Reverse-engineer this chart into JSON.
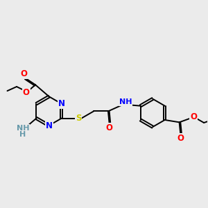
{
  "background_color": "#ebebeb",
  "atom_colors": {
    "N": "#0000FF",
    "O": "#FF0000",
    "S": "#CCCC00",
    "C": "#000000",
    "NH": "#6699AA",
    "NH2": "#6699AA"
  },
  "bond_lw": 1.4,
  "font_size": 8.5,
  "small_font": 7.5
}
